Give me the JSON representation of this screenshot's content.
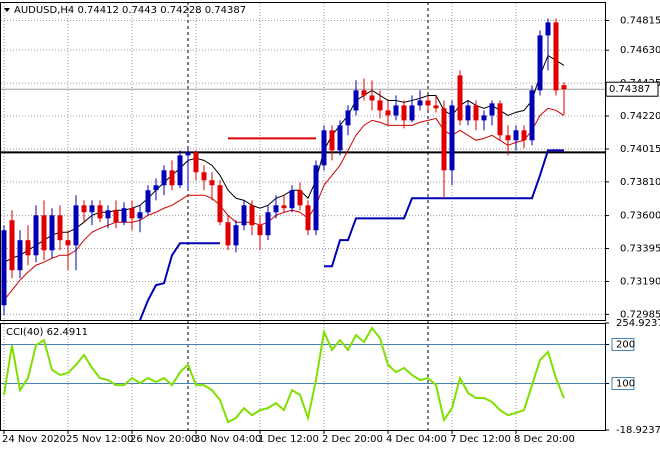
{
  "chart_data": [
    {
      "type": "candlestick",
      "title": "AUDUSD,H4",
      "categories": [
        "24 Nov 2020",
        null,
        null,
        null,
        null,
        null,
        null,
        null,
        "25 Nov 12:00",
        null,
        null,
        null,
        null,
        null,
        null,
        null,
        "26 Nov 20:00",
        null,
        null,
        null,
        null,
        null,
        null,
        null,
        "30 Nov 04:00",
        null,
        null,
        null,
        null,
        null,
        null,
        null,
        "1 Dec 12:00",
        null,
        null,
        null,
        null,
        null,
        null,
        null,
        "2 Dec 20:00",
        null,
        null,
        null,
        null,
        null,
        null,
        null,
        "4 Dec 04:00",
        null,
        null,
        null,
        null,
        null,
        null,
        null,
        "7 Dec 12:00",
        null,
        null,
        null,
        null,
        null,
        null,
        null,
        "8 Dec 20:00",
        null,
        null,
        null,
        null,
        null,
        null
      ],
      "open": [
        0.73042,
        0.73571,
        0.7326,
        0.73447,
        0.73353,
        0.73602,
        0.73384,
        0.73602,
        0.73447,
        0.73415,
        0.73664,
        0.73621,
        0.73664,
        0.73583,
        0.73633,
        0.73559,
        0.73646,
        0.73583,
        0.73621,
        0.73758,
        0.73789,
        0.73882,
        0.73789,
        0.73975,
        0.73994,
        0.7387,
        0.7382,
        0.73789,
        0.73559,
        0.73415,
        0.7354,
        0.73664,
        0.7354,
        0.73478,
        0.73621,
        0.73664,
        0.73646,
        0.73758,
        0.73664,
        0.73509,
        0.73913,
        0.74131,
        0.74006,
        0.74162,
        0.74255,
        0.7438,
        0.74348,
        0.74317,
        0.74255,
        0.74224,
        0.74286,
        0.74193,
        0.74286,
        0.74317,
        0.74286,
        0.74268,
        0.73882,
        0.74473,
        0.74193,
        0.74286,
        0.74193,
        0.74224,
        0.74299,
        0.741,
        0.74069,
        0.74131,
        0.74069,
        0.7438,
        0.74722,
        0.74803,
        0.74412
      ],
      "high": [
        0.7354,
        0.73633,
        0.73509,
        0.7354,
        0.73664,
        0.73695,
        0.73646,
        0.73664,
        0.73509,
        0.73727,
        0.73695,
        0.73695,
        0.73695,
        0.73664,
        0.73695,
        0.73683,
        0.73695,
        0.73664,
        0.73789,
        0.73832,
        0.73913,
        0.73944,
        0.74006,
        0.74019,
        0.74006,
        0.73913,
        0.7387,
        0.7382,
        0.73602,
        0.73571,
        0.73695,
        0.73695,
        0.73602,
        0.73664,
        0.73727,
        0.73727,
        0.73789,
        0.73807,
        0.73695,
        0.73944,
        0.74162,
        0.74162,
        0.74193,
        0.74286,
        0.74442,
        0.74454,
        0.74442,
        0.7438,
        0.74317,
        0.74348,
        0.74317,
        0.74348,
        0.7438,
        0.74348,
        0.74348,
        0.74317,
        0.74317,
        0.74504,
        0.74317,
        0.74317,
        0.74255,
        0.74317,
        0.74317,
        0.74162,
        0.74162,
        0.74162,
        0.74411,
        0.74753,
        0.74827,
        0.74827,
        0.7443
      ],
      "low": [
        0.7298,
        0.7321,
        0.7321,
        0.73291,
        0.7331,
        0.73322,
        0.73335,
        0.73384,
        0.7326,
        0.7326,
        0.73559,
        0.7354,
        0.73559,
        0.73521,
        0.73521,
        0.7354,
        0.73509,
        0.73496,
        0.73602,
        0.73695,
        0.73727,
        0.73758,
        0.7377,
        0.73758,
        0.7382,
        0.73758,
        0.73695,
        0.7354,
        0.73384,
        0.73372,
        0.73509,
        0.73478,
        0.73384,
        0.73447,
        0.73583,
        0.73621,
        0.73621,
        0.73633,
        0.73478,
        0.73478,
        0.73882,
        0.73944,
        0.73975,
        0.741,
        0.74224,
        0.74317,
        0.74255,
        0.74205,
        0.74162,
        0.74193,
        0.74143,
        0.74181,
        0.74255,
        0.74255,
        0.74243,
        0.73708,
        0.73789,
        0.74162,
        0.74162,
        0.74131,
        0.74131,
        0.74162,
        0.74069,
        0.73975,
        0.74006,
        0.74019,
        0.74038,
        0.74348,
        0.74504,
        0.74348,
        0.74228
      ],
      "close": [
        0.73509,
        0.7326,
        0.73447,
        0.73353,
        0.73602,
        0.73384,
        0.73602,
        0.73447,
        0.73415,
        0.73664,
        0.73621,
        0.73664,
        0.73583,
        0.73633,
        0.73559,
        0.73646,
        0.73583,
        0.73621,
        0.73758,
        0.73789,
        0.73882,
        0.73789,
        0.73975,
        0.73994,
        0.7387,
        0.7382,
        0.73789,
        0.73559,
        0.73415,
        0.7354,
        0.73664,
        0.7354,
        0.73478,
        0.73621,
        0.73664,
        0.73646,
        0.73758,
        0.73664,
        0.73509,
        0.73913,
        0.74131,
        0.74006,
        0.74162,
        0.74255,
        0.7438,
        0.74348,
        0.74317,
        0.74255,
        0.74224,
        0.74286,
        0.74193,
        0.74286,
        0.74317,
        0.74286,
        0.74268,
        0.73882,
        0.74286,
        0.74193,
        0.74286,
        0.74193,
        0.74224,
        0.74299,
        0.741,
        0.74069,
        0.74131,
        0.74069,
        0.7438,
        0.74722,
        0.74803,
        0.7438,
        0.74387
      ],
      "up_color": "#0000b4",
      "down_color": "#e00000",
      "series": [
        {
          "color": "#d00000",
          "width": 1,
          "values": [
            0.73073,
            0.73136,
            0.73198,
            0.73248,
            0.73291,
            0.7331,
            0.73335,
            0.73353,
            0.73353,
            0.73384,
            0.73447,
            0.73496,
            0.73521,
            0.7354,
            0.73559,
            0.73559,
            0.73559,
            0.73571,
            0.73602,
            0.73621,
            0.73646,
            0.73664,
            0.73695,
            0.73727,
            0.73727,
            0.73727,
            0.73708,
            0.73664,
            0.73602,
            0.73559,
            0.73559,
            0.73559,
            0.7354,
            0.73559,
            0.73602,
            0.73621,
            0.73633,
            0.73621,
            0.73583,
            0.73664,
            0.73789,
            0.73851,
            0.73913,
            0.74006,
            0.741,
            0.74162,
            0.74193,
            0.74181,
            0.74162,
            0.74162,
            0.74162,
            0.74162,
            0.74181,
            0.74193,
            0.74205,
            0.74131,
            0.741,
            0.74131,
            0.741,
            0.74069,
            0.74081,
            0.741,
            0.74069,
            0.74038,
            0.74056,
            0.74069,
            0.74131,
            0.74224,
            0.74268,
            0.74255,
            0.74224
          ]
        },
        {
          "color": "#000000",
          "width": 1,
          "values": [
            0.7331,
            0.73335,
            0.73353,
            0.73384,
            0.73415,
            0.73447,
            0.73478,
            0.73496,
            0.73496,
            0.73521,
            0.73559,
            0.73602,
            0.73621,
            0.73621,
            0.73633,
            0.73633,
            0.73646,
            0.73664,
            0.73708,
            0.73758,
            0.73807,
            0.73851,
            0.73894,
            0.73944,
            0.73957,
            0.73944,
            0.73913,
            0.73851,
            0.73758,
            0.73708,
            0.73695,
            0.73664,
            0.73646,
            0.73664,
            0.73708,
            0.73727,
            0.73758,
            0.73758,
            0.73708,
            0.7382,
            0.74006,
            0.741,
            0.74162,
            0.74224,
            0.74317,
            0.74348,
            0.7438,
            0.74348,
            0.74317,
            0.74317,
            0.74305,
            0.74317,
            0.7433,
            0.74348,
            0.74348,
            0.74255,
            0.74224,
            0.74286,
            0.74317,
            0.74286,
            0.74268,
            0.74286,
            0.74255,
            0.74224,
            0.74243,
            0.74255,
            0.74317,
            0.74473,
            0.74597,
            0.74566,
            0.74535
          ]
        },
        {
          "color": "#0000b4",
          "width": 2,
          "values": [
            null,
            null,
            null,
            null,
            null,
            null,
            null,
            null,
            null,
            null,
            null,
            null,
            null,
            null,
            null,
            null,
            null,
            0.72949,
            0.73073,
            0.73167,
            0.73179,
            0.73353,
            0.73428,
            0.73428,
            0.73428,
            0.73428,
            0.73428,
            0.73428,
            null,
            null,
            null,
            null,
            null,
            null,
            null,
            null,
            null,
            null,
            null,
            null,
            0.73285,
            0.73285,
            0.73447,
            0.73447,
            0.73583,
            0.73583,
            0.73583,
            0.73583,
            0.73583,
            0.73583,
            0.73583,
            0.73708,
            0.73708,
            0.73708,
            0.73708,
            0.73708,
            0.73708,
            0.73708,
            0.73708,
            0.73708,
            0.73708,
            0.73708,
            0.73708,
            0.73708,
            0.73708,
            0.73708,
            0.73708,
            0.73851,
            0.74006,
            0.74006,
            0.74006
          ]
        },
        {
          "color": "#e00000",
          "width": 2,
          "values": [
            null,
            null,
            null,
            null,
            null,
            null,
            null,
            null,
            null,
            null,
            null,
            null,
            null,
            null,
            null,
            null,
            null,
            null,
            null,
            null,
            null,
            null,
            null,
            null,
            null,
            null,
            null,
            null,
            0.74081,
            0.74081,
            0.74081,
            0.74081,
            0.74081,
            0.74081,
            0.74081,
            0.74081,
            0.74081,
            0.74081,
            0.74081,
            0.74081,
            null,
            null,
            null,
            null,
            null,
            null,
            null,
            null,
            null,
            null,
            null,
            null,
            null,
            null,
            null,
            null,
            null,
            null,
            null,
            null,
            null,
            null,
            null,
            null,
            null,
            null,
            null,
            null,
            null,
            null,
            null
          ]
        }
      ],
      "hlines": [
        {
          "value": 0.73994,
          "color": "#000000"
        }
      ],
      "ylim": [
        0.7295,
        0.7493
      ],
      "yticks": [
        0.74815,
        {
          "value": 0.7463,
          "label": "0.74630"
        },
        0.74425,
        {
          "value": 0.7422,
          "label": "0.74220"
        },
        0.74015,
        {
          "value": 0.7381,
          "label": "0.73810"
        },
        {
          "value": 0.736,
          "label": "0.73600"
        },
        0.73395,
        {
          "value": 0.7319,
          "label": "0.73190"
        },
        0.72985
      ],
      "grid": true
    },
    {
      "type": "line",
      "title": "CCI(40)",
      "series": [
        {
          "color": "#7fe000",
          "values": [
            71,
            198,
            83,
            114,
            198,
            211,
            135,
            122,
            127,
            148,
            173,
            140,
            114,
            109,
            96,
            96,
            114,
            101,
            114,
            104,
            114,
            96,
            129,
            148,
            96,
            96,
            83,
            58,
            1,
            12,
            37,
            19,
            32,
            37,
            50,
            32,
            83,
            71,
            12,
            109,
            232,
            186,
            211,
            186,
            224,
            206,
            242,
            216,
            148,
            129,
            140,
            122,
            109,
            114,
            96,
            7,
            37,
            114,
            76,
            63,
            63,
            53,
            32,
            19,
            25,
            32,
            96,
            160,
            181,
            114,
            62.4911
          ]
        }
      ],
      "ylim": [
        -18.9237,
        254.9237
      ],
      "yticks": [
        254.9237,
        200,
        100,
        -18.9237
      ],
      "levels": [
        200,
        100
      ],
      "level_color": "#4682b4"
    }
  ]
}
